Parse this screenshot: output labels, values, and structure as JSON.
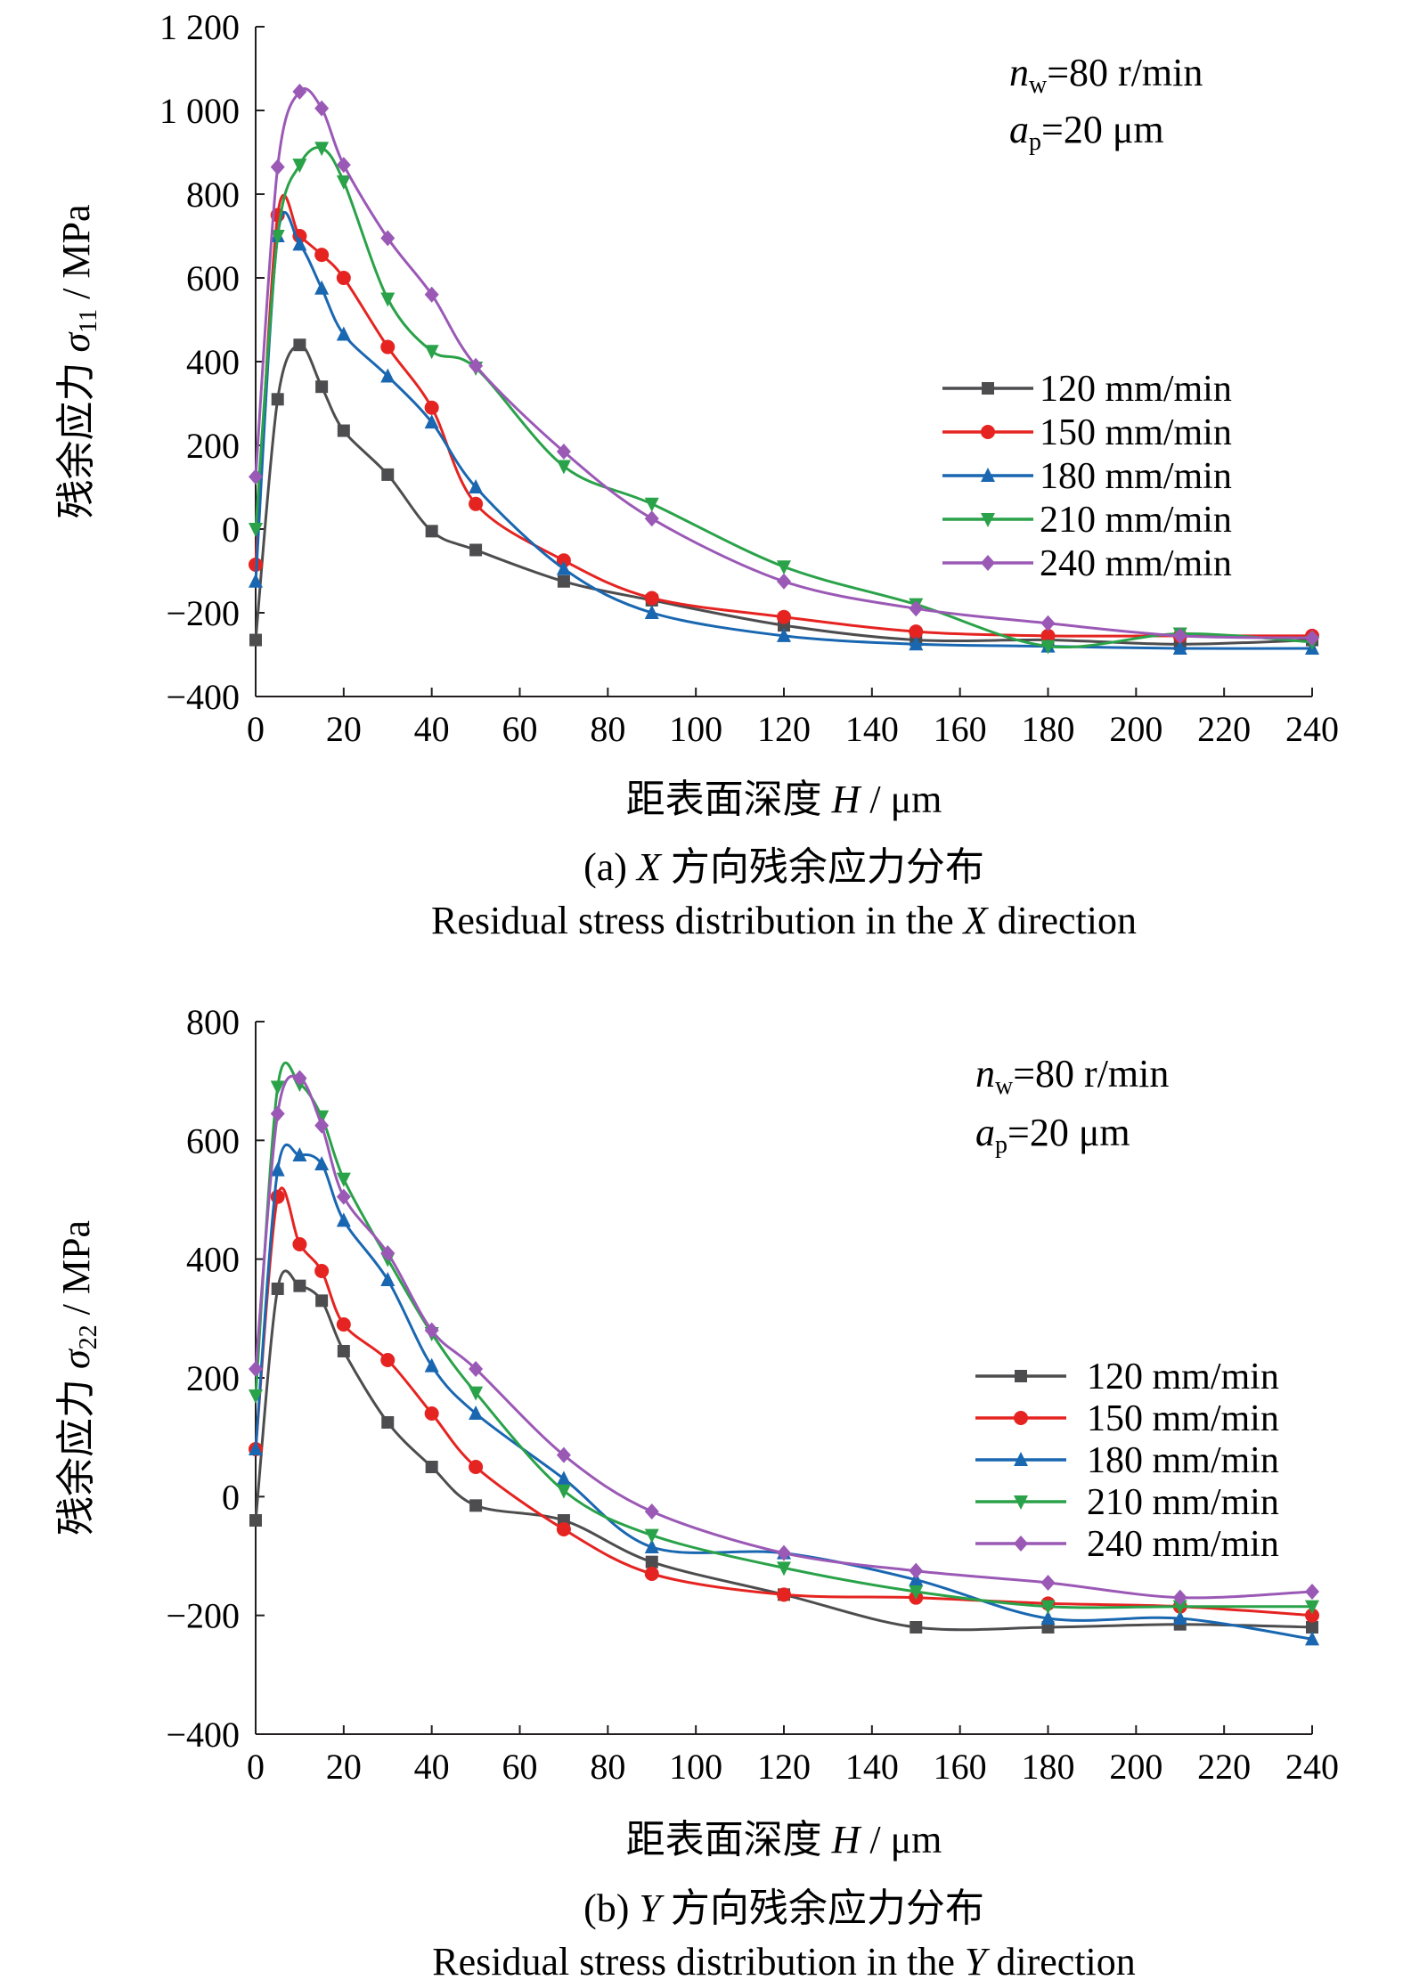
{
  "chart_data": [
    {
      "type": "line",
      "title": "",
      "caption": {
        "label": "(a)",
        "axis_letter": "X",
        "zh": "方向残余应力分布",
        "en_pre": "Residual stress distribution in the",
        "en_post": "direction"
      },
      "xlabel": {
        "zh": "距表面深度",
        "sym": "H",
        "unit": "/ μm"
      },
      "ylabel": {
        "zh": "残余应力",
        "sym": "σ",
        "sub": "11",
        "unit": "/ MPa"
      },
      "xlim": [
        0,
        240
      ],
      "ylim": [
        -400,
        1200
      ],
      "x_ticks": [
        0,
        20,
        40,
        60,
        80,
        100,
        120,
        140,
        160,
        180,
        200,
        220,
        240
      ],
      "y_ticks": [
        -400,
        -200,
        0,
        200,
        400,
        600,
        800,
        1000,
        1200
      ],
      "y_tick_labels": [
        "−400",
        "−200",
        "0",
        "200",
        "400",
        "600",
        "800",
        "1 000",
        "1 200"
      ],
      "conditions": [
        {
          "sym": "n",
          "sub": "w",
          "rest": "=80 r/min"
        },
        {
          "sym": "a",
          "sub": "p",
          "rest": "=20 μm"
        }
      ],
      "legend_position": "right-middle",
      "series": [
        {
          "name": "120 mm/min",
          "color": "#4d4d4f",
          "marker": "square",
          "x": [
            0,
            5,
            10,
            15,
            20,
            30,
            40,
            50,
            70,
            90,
            120,
            150,
            180,
            210,
            240
          ],
          "y": [
            -265,
            310,
            440,
            340,
            235,
            130,
            -5,
            -50,
            -125,
            -170,
            -230,
            -265,
            -265,
            -275,
            -265
          ]
        },
        {
          "name": "150 mm/min",
          "color": "#e52421",
          "marker": "circle",
          "x": [
            0,
            5,
            10,
            15,
            20,
            30,
            40,
            50,
            70,
            90,
            120,
            150,
            180,
            210,
            240
          ],
          "y": [
            -85,
            750,
            700,
            655,
            600,
            435,
            290,
            60,
            -75,
            -165,
            -210,
            -245,
            -255,
            -255,
            -255
          ]
        },
        {
          "name": "180 mm/min",
          "color": "#1a67b1",
          "marker": "triangle-up",
          "x": [
            0,
            5,
            10,
            15,
            20,
            30,
            40,
            50,
            70,
            90,
            120,
            150,
            180,
            210,
            240
          ],
          "y": [
            -125,
            700,
            680,
            575,
            465,
            365,
            255,
            100,
            -95,
            -200,
            -255,
            -275,
            -280,
            -285,
            -285
          ]
        },
        {
          "name": "210 mm/min",
          "color": "#2aa249",
          "marker": "triangle-down",
          "x": [
            0,
            5,
            10,
            15,
            20,
            30,
            40,
            50,
            70,
            90,
            120,
            150,
            180,
            210,
            240
          ],
          "y": [
            0,
            700,
            870,
            910,
            830,
            550,
            425,
            385,
            150,
            60,
            -90,
            -180,
            -280,
            -250,
            -270
          ]
        },
        {
          "name": "240 mm/min",
          "color": "#9b59b6",
          "marker": "diamond",
          "x": [
            0,
            5,
            10,
            15,
            20,
            30,
            40,
            50,
            70,
            90,
            120,
            150,
            180,
            210,
            240
          ],
          "y": [
            125,
            865,
            1045,
            1005,
            870,
            695,
            560,
            390,
            185,
            25,
            -125,
            -190,
            -225,
            -255,
            -260
          ]
        }
      ]
    },
    {
      "type": "line",
      "title": "",
      "caption": {
        "label": "(b)",
        "axis_letter": "Y",
        "zh": "方向残余应力分布",
        "en_pre": "Residual stress distribution in the",
        "en_post": "direction"
      },
      "xlabel": {
        "zh": "距表面深度",
        "sym": "H",
        "unit": "/ μm"
      },
      "ylabel": {
        "zh": "残余应力",
        "sym": "σ",
        "sub": "22",
        "unit": "/ MPa"
      },
      "xlim": [
        0,
        240
      ],
      "ylim": [
        -400,
        800
      ],
      "x_ticks": [
        0,
        20,
        40,
        60,
        80,
        100,
        120,
        140,
        160,
        180,
        200,
        220,
        240
      ],
      "y_ticks": [
        -400,
        -200,
        0,
        200,
        400,
        600,
        800
      ],
      "y_tick_labels": [
        "−400",
        "−200",
        "0",
        "200",
        "400",
        "600",
        "800"
      ],
      "conditions": [
        {
          "sym": "n",
          "sub": "w",
          "rest": "=80 r/min"
        },
        {
          "sym": "a",
          "sub": "p",
          "rest": "=20 μm"
        }
      ],
      "legend_position": "right-middle",
      "series": [
        {
          "name": "120 mm/min",
          "color": "#4d4d4f",
          "marker": "square",
          "x": [
            0,
            5,
            10,
            15,
            20,
            30,
            40,
            50,
            70,
            90,
            120,
            150,
            180,
            210,
            240
          ],
          "y": [
            -40,
            350,
            355,
            330,
            245,
            125,
            50,
            -15,
            -40,
            -110,
            -165,
            -220,
            -220,
            -215,
            -220
          ]
        },
        {
          "name": "150 mm/min",
          "color": "#e52421",
          "marker": "circle",
          "x": [
            0,
            5,
            10,
            15,
            20,
            30,
            40,
            50,
            70,
            90,
            120,
            150,
            180,
            210,
            240
          ],
          "y": [
            80,
            505,
            425,
            380,
            290,
            230,
            140,
            50,
            -55,
            -130,
            -165,
            -170,
            -180,
            -185,
            -200
          ]
        },
        {
          "name": "180 mm/min",
          "color": "#1a67b1",
          "marker": "triangle-up",
          "x": [
            0,
            5,
            10,
            15,
            20,
            30,
            40,
            50,
            70,
            90,
            120,
            150,
            180,
            210,
            240
          ],
          "y": [
            80,
            550,
            575,
            560,
            465,
            365,
            220,
            140,
            30,
            -85,
            -95,
            -140,
            -205,
            -205,
            -240
          ]
        },
        {
          "name": "210 mm/min",
          "color": "#2aa249",
          "marker": "triangle-down",
          "x": [
            0,
            5,
            10,
            15,
            20,
            30,
            40,
            50,
            70,
            90,
            120,
            150,
            180,
            210,
            240
          ],
          "y": [
            170,
            690,
            695,
            640,
            535,
            400,
            275,
            175,
            10,
            -65,
            -120,
            -160,
            -185,
            -185,
            -185
          ]
        },
        {
          "name": "240 mm/min",
          "color": "#9b59b6",
          "marker": "diamond",
          "x": [
            0,
            5,
            10,
            15,
            20,
            30,
            40,
            50,
            70,
            90,
            120,
            150,
            180,
            210,
            240
          ],
          "y": [
            215,
            645,
            705,
            625,
            505,
            410,
            280,
            215,
            70,
            -25,
            -95,
            -125,
            -145,
            -170,
            -160
          ]
        }
      ]
    }
  ]
}
